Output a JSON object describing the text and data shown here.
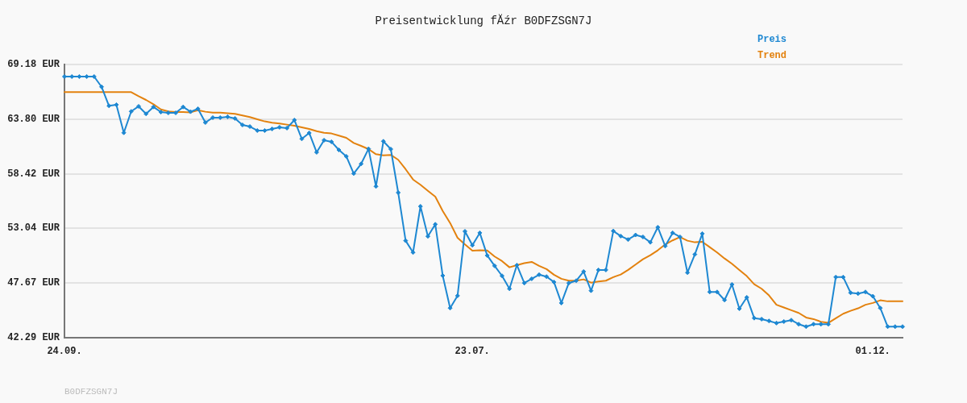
{
  "chart_data": {
    "type": "line",
    "title": "Preisentwicklung fĂźr B0DFZSGN7J",
    "annotations": [
      "B0DFZSGN7J"
    ],
    "categories": [
      "24.09.",
      null,
      null,
      null,
      null,
      null,
      null,
      null,
      null,
      null,
      null,
      null,
      null,
      null,
      null,
      null,
      null,
      null,
      null,
      null,
      null,
      null,
      null,
      null,
      null,
      null,
      null,
      null,
      null,
      null,
      null,
      null,
      null,
      null,
      null,
      null,
      null,
      null,
      null,
      null,
      null,
      null,
      null,
      null,
      null,
      null,
      null,
      null,
      null,
      null,
      null,
      null,
      null,
      null,
      null,
      "23.07.",
      null,
      null,
      null,
      null,
      null,
      null,
      null,
      null,
      null,
      null,
      null,
      null,
      null,
      null,
      null,
      null,
      null,
      null,
      null,
      null,
      null,
      null,
      null,
      null,
      null,
      null,
      null,
      null,
      null,
      null,
      null,
      null,
      null,
      null,
      null,
      null,
      null,
      null,
      null,
      null,
      null,
      null,
      null,
      null,
      null,
      null,
      null,
      null,
      null,
      null,
      null,
      null,
      null,
      "01.12.",
      null,
      null,
      null,
      null
    ],
    "series": [
      {
        "name": "Preis",
        "color": "#1e88d2",
        "marker": "diamond",
        "values": [
          67.99,
          67.99,
          67.99,
          67.99,
          67.99,
          66.98,
          65.11,
          65.22,
          62.46,
          64.56,
          65.06,
          64.32,
          65.0,
          64.5,
          64.42,
          64.42,
          65.0,
          64.53,
          64.82,
          63.47,
          63.95,
          63.95,
          64.03,
          63.87,
          63.23,
          63.07,
          62.68,
          62.68,
          62.84,
          63.0,
          62.92,
          63.71,
          61.86,
          62.44,
          60.54,
          61.73,
          61.57,
          60.77,
          60.14,
          58.45,
          59.4,
          60.88,
          57.18,
          61.62,
          60.85,
          56.57,
          51.84,
          50.68,
          55.22,
          52.27,
          53.45,
          48.4,
          45.21,
          46.42,
          52.76,
          51.39,
          52.61,
          50.39,
          49.36,
          48.38,
          47.11,
          49.43,
          47.67,
          48.09,
          48.49,
          48.3,
          47.77,
          45.71,
          47.67,
          47.9,
          48.8,
          46.92,
          48.96,
          48.96,
          52.79,
          52.29,
          51.95,
          52.4,
          52.21,
          51.68,
          53.16,
          51.31,
          52.61,
          52.21,
          48.7,
          50.49,
          52.53,
          46.79,
          46.79,
          46.0,
          47.53,
          45.15,
          46.26,
          44.22,
          44.12,
          43.94,
          43.73,
          43.88,
          44.02,
          43.62,
          43.38,
          43.62,
          43.62,
          43.62,
          48.25,
          48.25,
          46.71,
          46.63,
          46.79,
          46.37,
          45.21,
          43.38,
          43.38,
          43.38
        ]
      },
      {
        "name": "Trend",
        "color": "#e3820f",
        "marker": "none",
        "values": [
          66.46,
          66.46,
          66.46,
          66.46,
          66.46,
          66.46,
          66.46,
          66.46,
          66.46,
          66.46,
          66.06,
          65.69,
          65.27,
          64.76,
          64.56,
          64.5,
          64.5,
          64.47,
          64.68,
          64.53,
          64.45,
          64.45,
          64.39,
          64.32,
          64.16,
          64.0,
          63.79,
          63.58,
          63.45,
          63.37,
          63.26,
          63.15,
          63.0,
          62.84,
          62.62,
          62.46,
          62.39,
          62.18,
          61.96,
          61.46,
          61.17,
          60.85,
          60.35,
          60.24,
          60.28,
          59.8,
          58.87,
          57.86,
          57.34,
          56.75,
          56.17,
          54.77,
          53.58,
          52.13,
          51.47,
          50.86,
          50.9,
          50.88,
          50.28,
          49.83,
          49.22,
          49.43,
          49.62,
          49.75,
          49.36,
          49.04,
          48.49,
          48.09,
          47.9,
          47.9,
          48.03,
          47.71,
          47.82,
          47.9,
          48.25,
          48.51,
          48.96,
          49.49,
          50.01,
          50.41,
          50.89,
          51.47,
          51.87,
          52.19,
          51.84,
          51.68,
          51.73,
          51.2,
          50.68,
          50.09,
          49.57,
          48.96,
          48.35,
          47.55,
          47.11,
          46.45,
          45.53,
          45.26,
          45.0,
          44.73,
          44.28,
          44.12,
          43.86,
          43.75,
          44.2,
          44.65,
          44.94,
          45.18,
          45.53,
          45.71,
          45.97,
          45.87,
          45.87,
          45.87
        ]
      }
    ],
    "ylim": [
      42.29,
      69.18
    ],
    "yticks": [
      {
        "value": 42.29,
        "label": "42.29 EUR"
      },
      {
        "value": 47.67,
        "label": "47.67 EUR"
      },
      {
        "value": 53.04,
        "label": "53.04 EUR"
      },
      {
        "value": 58.42,
        "label": "58.42 EUR"
      },
      {
        "value": 63.8,
        "label": "63.80 EUR"
      },
      {
        "value": 69.18,
        "label": "69.18 EUR"
      }
    ],
    "grid": "y",
    "legend": "top right",
    "line_style": "solid"
  }
}
